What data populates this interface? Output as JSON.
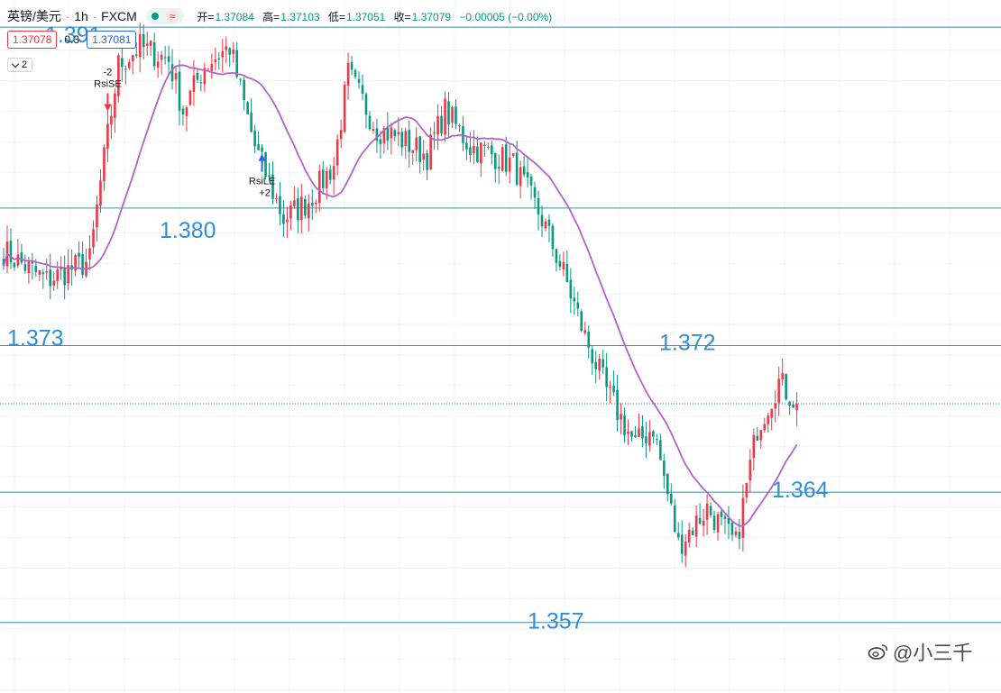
{
  "header": {
    "symbol": "英镑/美元",
    "interval": "1h",
    "exchange": "FXCM",
    "wave_symbol": "≈",
    "ohlc": {
      "open_label": "开=",
      "open": "1.37084",
      "high_label": "高=",
      "high": "1.37103",
      "low_label": "低=",
      "low": "1.37051",
      "close_label": "收=",
      "close": "1.37079",
      "change": "−0.00005 (−0.00%)"
    }
  },
  "prices": {
    "bid": "1.37078",
    "spread": "0.3",
    "ask": "1.37081"
  },
  "collapse_label": "2",
  "watermark": "@小三千",
  "colors": {
    "up": "#f23645",
    "down": "#089981",
    "ma": "#b462c8",
    "hline": "#3a8ea8",
    "annotation": "#2e8fd6"
  },
  "chart_data": {
    "type": "candlestick",
    "ylim": [
      1.3548,
      1.3931
    ],
    "horizontal_lines": [
      1.3916,
      1.3816,
      1.374,
      1.3659,
      1.3587
    ],
    "current_price_line": 1.37079,
    "annotations": [
      {
        "text": "1.391",
        "price": 1.391,
        "bar": 3
      },
      {
        "text": "1.380",
        "price": 1.38,
        "bar": 44
      },
      {
        "text": "1.373",
        "price": 1.373,
        "bar": 0
      },
      {
        "text": "1.372",
        "price": 1.372,
        "bar": 180
      },
      {
        "text": "1.364",
        "price": 1.364,
        "bar": 211
      },
      {
        "text": "1.357",
        "price": 1.357,
        "bar": 145
      }
    ],
    "signals": [
      {
        "name": "RsiSE",
        "qty": "-2",
        "bar": 29,
        "type": "short"
      },
      {
        "name": "RsiLE",
        "qty": "+2",
        "bar": 72,
        "type": "long"
      }
    ],
    "ma_period": 20,
    "anchors": [
      [
        0,
        1.3792
      ],
      [
        12,
        1.3776
      ],
      [
        24,
        1.3787
      ],
      [
        27,
        1.383
      ],
      [
        32,
        1.3895
      ],
      [
        38,
        1.3905
      ],
      [
        46,
        1.3898
      ],
      [
        50,
        1.387
      ],
      [
        56,
        1.3895
      ],
      [
        63,
        1.3905
      ],
      [
        70,
        1.385
      ],
      [
        78,
        1.381
      ],
      [
        85,
        1.382
      ],
      [
        92,
        1.384
      ],
      [
        96,
        1.389
      ],
      [
        104,
        1.386
      ],
      [
        110,
        1.3855
      ],
      [
        118,
        1.3845
      ],
      [
        123,
        1.387
      ],
      [
        130,
        1.385
      ],
      [
        137,
        1.3845
      ],
      [
        142,
        1.384
      ],
      [
        150,
        1.381
      ],
      [
        156,
        1.378
      ],
      [
        162,
        1.3745
      ],
      [
        168,
        1.3715
      ],
      [
        176,
        1.3685
      ],
      [
        181,
        1.3695
      ],
      [
        188,
        1.363
      ],
      [
        196,
        1.365
      ],
      [
        204,
        1.363
      ],
      [
        210,
        1.3695
      ],
      [
        216,
        1.372
      ],
      [
        221,
        1.3708
      ]
    ]
  }
}
